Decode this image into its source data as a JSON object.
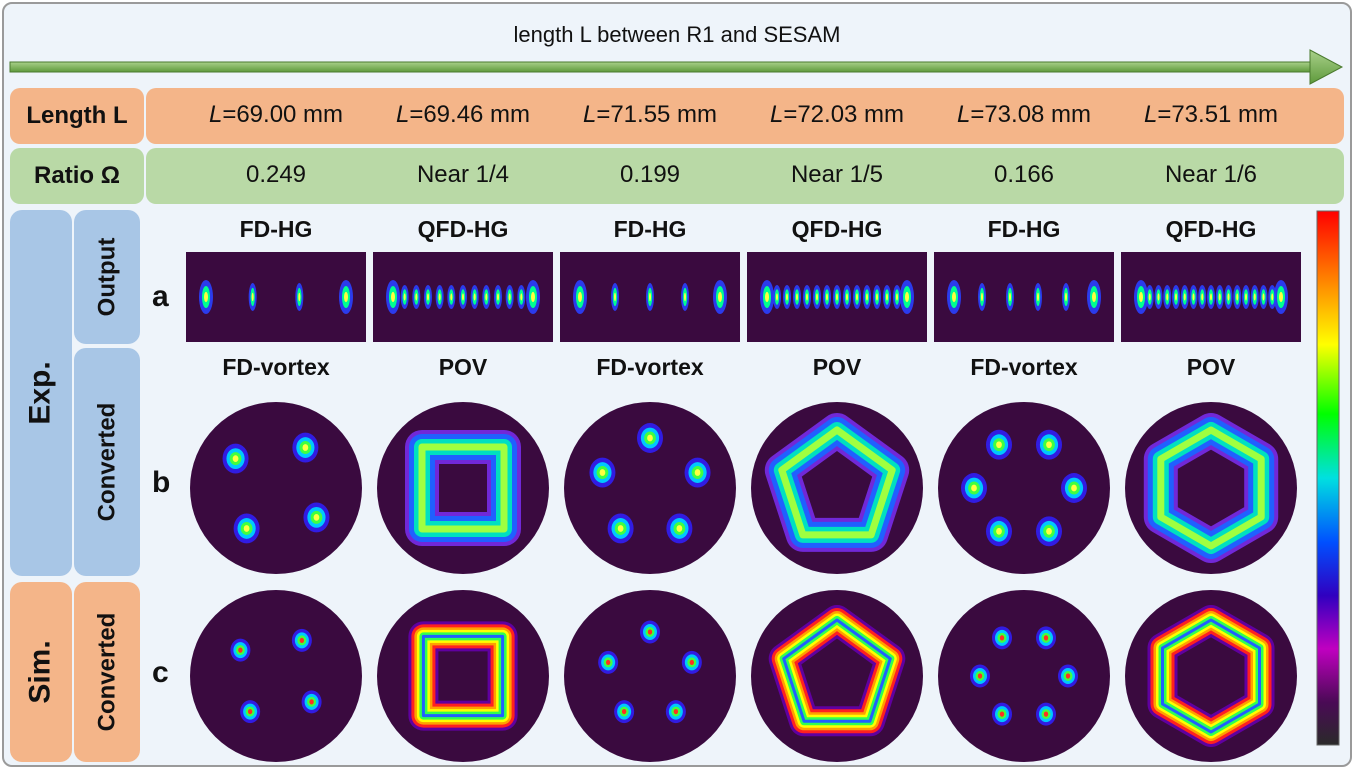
{
  "header": {
    "title": "length L between R1 and SESAM"
  },
  "rows": {
    "length_label": "Length L",
    "ratio_label": "Ratio Ω",
    "exp_label": "Exp.",
    "sim_label": "Sim.",
    "output_label": "Output",
    "converted_label_exp": "Converted",
    "converted_label_sim": "Converted"
  },
  "lengths": [
    "=69.00 mm",
    "=69.46 mm",
    "=71.55 mm",
    "=72.03 mm",
    "=73.08 mm",
    "=73.51 mm"
  ],
  "ratios": [
    "0.249",
    "Near 1/4",
    "0.199",
    "Near 1/5",
    "0.166",
    "Near 1/6"
  ],
  "output_modes": [
    "FD-HG",
    "QFD-HG",
    "FD-HG",
    "QFD-HG",
    "FD-HG",
    "QFD-HG"
  ],
  "converted_modes": [
    "FD-vortex",
    "POV",
    "FD-vortex",
    "POV",
    "FD-vortex",
    "POV"
  ],
  "panel_letters": {
    "a": "a",
    "b": "b",
    "c": "c"
  },
  "colors": {
    "orange": "#f4b589",
    "green": "#b9d9a6",
    "blue": "#a8c6e6",
    "arrow": "#6fa84a",
    "beam_bg": "#3a0a3f"
  }
}
